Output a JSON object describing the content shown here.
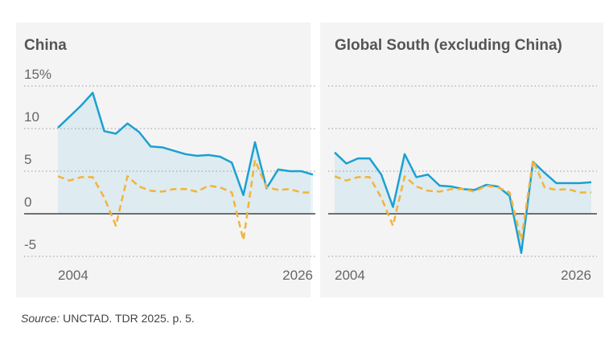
{
  "chart_data": [
    {
      "type": "line",
      "title": "China",
      "x": [
        2004,
        2005,
        2006,
        2007,
        2008,
        2009,
        2010,
        2011,
        2012,
        2013,
        2014,
        2015,
        2016,
        2017,
        2018,
        2019,
        2020,
        2021,
        2022,
        2023,
        2024,
        2025,
        2026
      ],
      "series": [
        {
          "color": "#1ba0d2",
          "dash": false,
          "area": true,
          "values": [
            10.1,
            11.4,
            12.7,
            14.2,
            9.7,
            9.4,
            10.6,
            9.6,
            7.9,
            7.8,
            7.4,
            7.0,
            6.8,
            6.9,
            6.7,
            6.0,
            2.2,
            8.4,
            3.0,
            5.2,
            5.0,
            5.0,
            4.6
          ]
        },
        {
          "color": "#f2b43a",
          "dash": true,
          "area": false,
          "values": [
            4.4,
            3.9,
            4.3,
            4.3,
            1.9,
            -1.4,
            4.4,
            3.2,
            2.7,
            2.6,
            2.9,
            2.9,
            2.6,
            3.3,
            3.1,
            2.5,
            -3.1,
            6.3,
            3.1,
            2.8,
            2.9,
            2.5,
            2.5
          ]
        }
      ],
      "xlim": [
        2004,
        2026
      ],
      "xticks": [
        2004,
        2026
      ],
      "ylim": [
        -5,
        15
      ],
      "yticks": [
        -5,
        0,
        5,
        10,
        {
          "value": 15,
          "label": "15%"
        }
      ],
      "show_ytick_labels": true,
      "grid": true
    },
    {
      "type": "line",
      "title": "Global South (excluding China)",
      "x": [
        2004,
        2005,
        2006,
        2007,
        2008,
        2009,
        2010,
        2011,
        2012,
        2013,
        2014,
        2015,
        2016,
        2017,
        2018,
        2019,
        2020,
        2021,
        2022,
        2023,
        2024,
        2025,
        2026
      ],
      "series": [
        {
          "color": "#1ba0d2",
          "dash": false,
          "area": true,
          "values": [
            7.2,
            5.9,
            6.5,
            6.5,
            4.6,
            0.8,
            7.0,
            4.3,
            4.6,
            3.3,
            3.2,
            2.9,
            2.8,
            3.4,
            3.2,
            2.1,
            -4.6,
            6.1,
            4.8,
            3.6,
            3.6,
            3.6,
            3.7
          ]
        },
        {
          "color": "#f2b43a",
          "dash": true,
          "area": false,
          "values": [
            4.4,
            3.9,
            4.3,
            4.3,
            1.9,
            -1.4,
            4.4,
            3.2,
            2.7,
            2.6,
            2.9,
            2.9,
            2.6,
            3.3,
            3.1,
            2.5,
            -3.1,
            6.3,
            3.1,
            2.8,
            2.9,
            2.5,
            2.5
          ]
        }
      ],
      "xlim": [
        2004,
        2026
      ],
      "xticks": [
        2004,
        2026
      ],
      "ylim": [
        -5,
        15
      ],
      "yticks": [
        -5,
        0,
        5,
        10,
        15
      ],
      "show_ytick_labels": false,
      "grid": true
    }
  ],
  "source": {
    "label": "Source:",
    "text": "UNCTAD. TDR 2025. p. 5."
  }
}
